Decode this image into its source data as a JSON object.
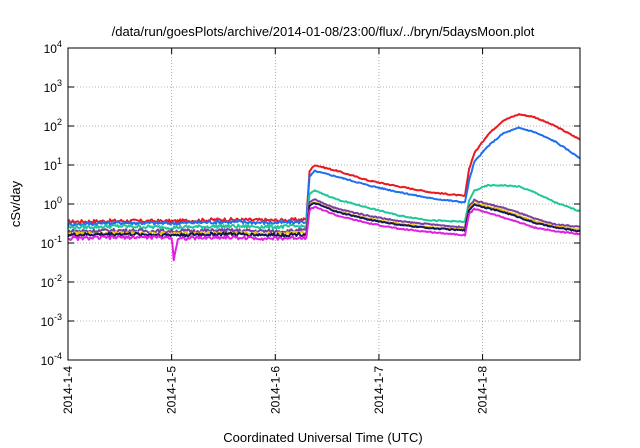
{
  "chart_data": {
    "type": "line",
    "title": "/data/run/goesPlots/archive/2014-01-08/23:00/flux/../bryn/5daysMoon.plot",
    "xlabel": "Coordinated Universal Time (UTC)",
    "ylabel": "cSv/day",
    "yscale": "log",
    "ylim": [
      0.0001,
      10000
    ],
    "xlim_days": [
      0,
      4.94
    ],
    "x_ticks": [
      {
        "label": "2014-1-4",
        "day": 0
      },
      {
        "label": "2014-1-5",
        "day": 1
      },
      {
        "label": "2014-1-6",
        "day": 2
      },
      {
        "label": "2014-1-7",
        "day": 3
      },
      {
        "label": "2014-1-8",
        "day": 4
      }
    ],
    "y_ticks": [
      {
        "base": "10",
        "exp": "-4",
        "value": 0.0001
      },
      {
        "base": "10",
        "exp": "-3",
        "value": 0.001
      },
      {
        "base": "10",
        "exp": "-2",
        "value": 0.01
      },
      {
        "base": "10",
        "exp": "-1",
        "value": 0.1
      },
      {
        "base": "10",
        "exp": "0",
        "value": 1
      },
      {
        "base": "10",
        "exp": "1",
        "value": 10
      },
      {
        "base": "10",
        "exp": "2",
        "value": 100
      },
      {
        "base": "10",
        "exp": "3",
        "value": 1000
      },
      {
        "base": "10",
        "exp": "4",
        "value": 10000
      }
    ],
    "grid": true,
    "series": [
      {
        "name": "red",
        "color": "#e8191f",
        "x": [
          0,
          0.5,
          1.0,
          1.5,
          2.0,
          2.3,
          2.33,
          2.38,
          2.6,
          2.9,
          3.2,
          3.5,
          3.83,
          3.87,
          3.92,
          4.05,
          4.2,
          4.35,
          4.5,
          4.7,
          4.94
        ],
        "y": [
          0.35,
          0.37,
          0.36,
          0.4,
          0.38,
          0.4,
          7.0,
          10.0,
          7.0,
          4.0,
          2.8,
          2.0,
          1.6,
          8.0,
          20.0,
          60.0,
          140.0,
          200.0,
          170.0,
          100.0,
          45.0
        ]
      },
      {
        "name": "blue",
        "color": "#1f6ff0",
        "x": [
          0,
          0.5,
          1.0,
          1.5,
          2.0,
          2.3,
          2.33,
          2.38,
          2.6,
          2.9,
          3.2,
          3.5,
          3.83,
          3.87,
          3.92,
          4.05,
          4.2,
          4.35,
          4.5,
          4.7,
          4.94
        ],
        "y": [
          0.3,
          0.33,
          0.32,
          0.35,
          0.33,
          0.35,
          5.0,
          7.0,
          5.0,
          3.0,
          2.0,
          1.4,
          1.1,
          4.0,
          12.0,
          30.0,
          65.0,
          90.0,
          70.0,
          40.0,
          15.0
        ]
      },
      {
        "name": "teal",
        "color": "#1fc79a",
        "x": [
          0,
          0.5,
          1.0,
          1.5,
          2.0,
          2.3,
          2.33,
          2.38,
          2.6,
          2.9,
          3.2,
          3.5,
          3.83,
          3.87,
          3.92,
          4.05,
          4.2,
          4.35,
          4.5,
          4.7,
          4.94
        ],
        "y": [
          0.25,
          0.27,
          0.25,
          0.27,
          0.26,
          0.27,
          1.8,
          2.2,
          1.3,
          0.8,
          0.5,
          0.38,
          0.35,
          1.2,
          2.2,
          3.0,
          3.0,
          2.8,
          2.0,
          1.1,
          0.65
        ]
      },
      {
        "name": "purple",
        "color": "#7a3fa0",
        "x": [
          0,
          0.5,
          1.0,
          1.5,
          2.0,
          2.3,
          2.33,
          2.38,
          2.6,
          2.9,
          3.2,
          3.5,
          3.83,
          3.87,
          3.92,
          4.05,
          4.2,
          4.35,
          4.5,
          4.7,
          4.94
        ],
        "y": [
          0.2,
          0.21,
          0.2,
          0.21,
          0.2,
          0.21,
          1.1,
          1.3,
          0.75,
          0.5,
          0.36,
          0.3,
          0.25,
          0.9,
          1.25,
          1.0,
          0.8,
          0.6,
          0.42,
          0.3,
          0.26
        ]
      },
      {
        "name": "gold",
        "color": "#f0c000",
        "x": [
          0,
          0.5,
          1.0,
          1.5,
          2.0,
          2.3,
          2.33,
          2.38,
          2.6,
          2.9,
          3.2,
          3.5,
          3.83,
          3.87,
          3.92,
          4.05,
          4.2,
          4.35,
          4.5,
          4.7,
          4.94
        ],
        "y": [
          0.17,
          0.18,
          0.17,
          0.18,
          0.17,
          0.18,
          0.95,
          1.1,
          0.65,
          0.42,
          0.31,
          0.25,
          0.22,
          0.75,
          1.05,
          0.85,
          0.68,
          0.5,
          0.36,
          0.27,
          0.22
        ]
      },
      {
        "name": "navy",
        "color": "#101860",
        "x": [
          0,
          0.5,
          1.0,
          1.5,
          2.0,
          2.3,
          2.33,
          2.38,
          2.6,
          2.9,
          3.2,
          3.5,
          3.83,
          3.87,
          3.92,
          4.05,
          4.2,
          4.35,
          4.5,
          4.7,
          4.94
        ],
        "y": [
          0.16,
          0.17,
          0.16,
          0.17,
          0.16,
          0.17,
          0.9,
          1.05,
          0.62,
          0.4,
          0.29,
          0.24,
          0.21,
          0.7,
          0.98,
          0.78,
          0.62,
          0.46,
          0.33,
          0.25,
          0.2
        ]
      },
      {
        "name": "magenta",
        "color": "#e020e0",
        "x": [
          0,
          0.5,
          1.0,
          1.02,
          1.06,
          1.5,
          2.0,
          2.3,
          2.33,
          2.38,
          2.6,
          2.9,
          3.2,
          3.5,
          3.83,
          3.87,
          3.92,
          4.05,
          4.2,
          4.35,
          4.5,
          4.7,
          4.94
        ],
        "y": [
          0.13,
          0.14,
          0.14,
          0.04,
          0.13,
          0.14,
          0.13,
          0.14,
          0.7,
          0.85,
          0.5,
          0.32,
          0.23,
          0.19,
          0.16,
          0.55,
          0.75,
          0.6,
          0.45,
          0.34,
          0.25,
          0.2,
          0.17
        ]
      }
    ]
  }
}
